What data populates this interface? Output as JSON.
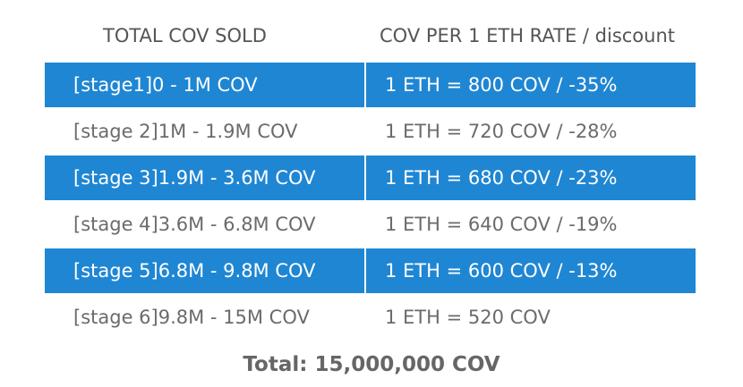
{
  "headers": {
    "sold": "TOTAL COV SOLD",
    "rate": "COV PER 1 ETH RATE / discount"
  },
  "rows": [
    {
      "stage": "[stage1]0 - 1M COV",
      "rate": "1 ETH = 800 COV / -35%",
      "highlight": true
    },
    {
      "stage": "[stage 2]1M - 1.9M COV",
      "rate": "1 ETH = 720 COV / -28%",
      "highlight": false
    },
    {
      "stage": "[stage 3]1.9M - 3.6M COV",
      "rate": "1 ETH = 680 COV / -23%",
      "highlight": true
    },
    {
      "stage": "[stage 4]3.6M - 6.8M COV",
      "rate": "1 ETH = 640 COV / -19%",
      "highlight": false
    },
    {
      "stage": "[stage 5]6.8M - 9.8M COV",
      "rate": "1 ETH = 600 COV / -13%",
      "highlight": true
    },
    {
      "stage": "[stage 6]9.8M - 15M COV",
      "rate": "1 ETH = 520 COV",
      "highlight": false
    }
  ],
  "total": "Total: 15,000,000 COV",
  "colors": {
    "highlight_bg": "#1f86d3",
    "highlight_text": "#ffffff",
    "plain_text": "#6b6b6b"
  }
}
